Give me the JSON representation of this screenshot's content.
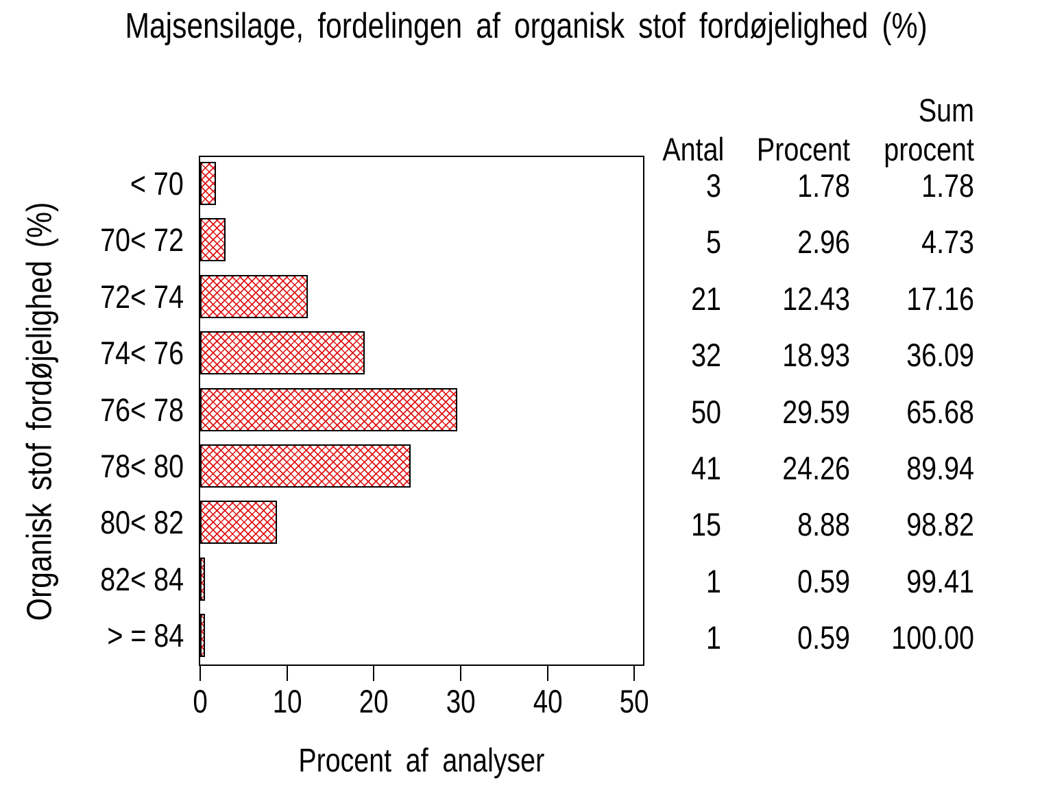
{
  "title": "Majsensilage, fordelingen af organisk stof fordøjelighed (%)",
  "chart_data": {
    "type": "bar",
    "orientation": "horizontal",
    "title": "Majsensilage, fordelingen af organisk stof fordøjelighed (%)",
    "categories": [
      "< 70",
      "70< 72",
      "72< 74",
      "74< 76",
      "76< 78",
      "78< 80",
      "80< 82",
      "82< 84",
      "> = 84"
    ],
    "values": [
      1.78,
      2.96,
      12.43,
      18.93,
      29.59,
      24.26,
      8.88,
      0.59,
      0.59
    ],
    "counts": [
      3,
      5,
      21,
      32,
      50,
      41,
      15,
      1,
      1
    ],
    "cum_percent": [
      1.78,
      4.73,
      17.16,
      36.09,
      65.68,
      89.94,
      98.82,
      99.41,
      100.0
    ],
    "xlabel": "Procent af analyser",
    "ylabel": "Organisk stof fordøjelighed (%)",
    "xticks": [
      0,
      10,
      20,
      30,
      40,
      50
    ],
    "xlim": [
      0,
      51
    ],
    "grid": false,
    "legend": "none",
    "bar_pattern": "red-crosshatch",
    "bar_hatch_color": "#e01212",
    "bar_border_color": "#000000"
  },
  "table": {
    "headers": {
      "antal": "Antal",
      "procent": "Procent",
      "sum_line1": "Sum",
      "sum_line2": "procent"
    },
    "rows": [
      [
        "3",
        "1.78",
        "1.78"
      ],
      [
        "5",
        "2.96",
        "4.73"
      ],
      [
        "21",
        "12.43",
        "17.16"
      ],
      [
        "32",
        "18.93",
        "36.09"
      ],
      [
        "50",
        "29.59",
        "65.68"
      ],
      [
        "41",
        "24.26",
        "89.94"
      ],
      [
        "15",
        "8.88",
        "98.82"
      ],
      [
        "1",
        "0.59",
        "99.41"
      ],
      [
        "1",
        "0.59",
        "100.00"
      ]
    ]
  }
}
